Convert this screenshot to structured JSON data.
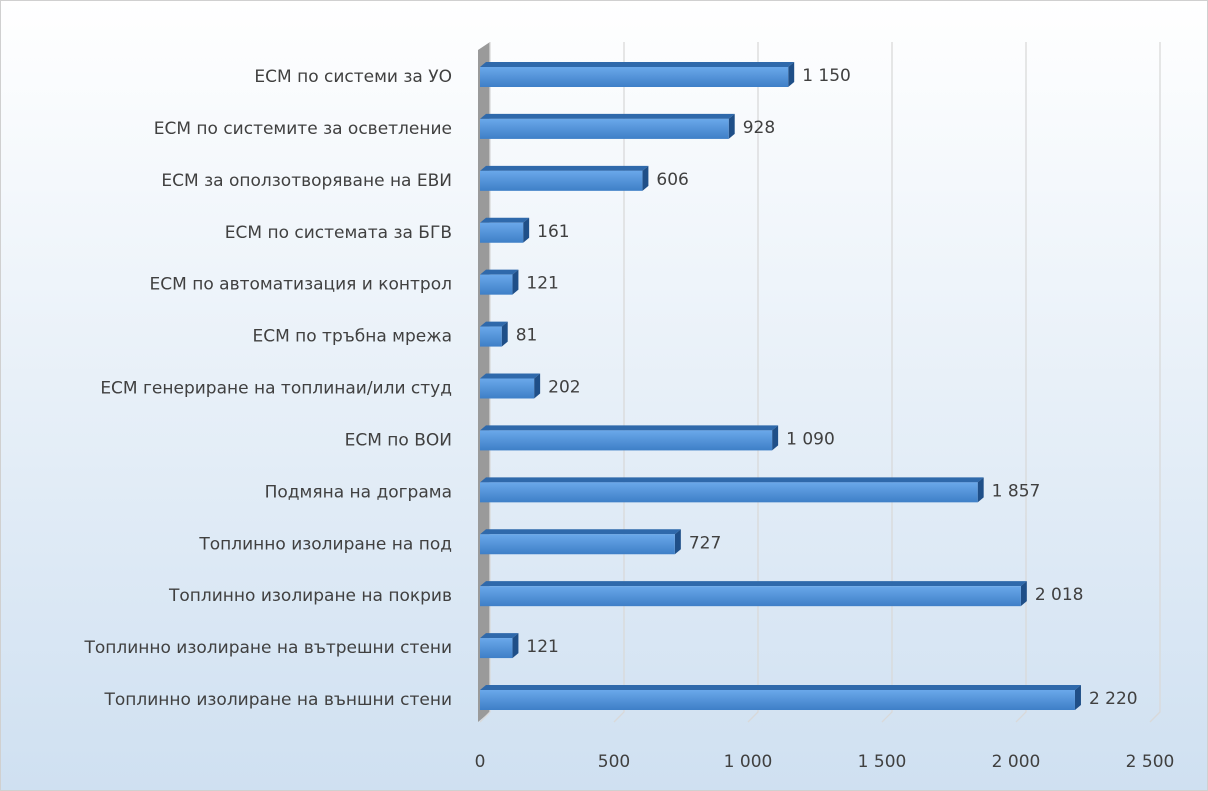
{
  "chart_data": {
    "type": "bar",
    "orientation": "horizontal",
    "categories": [
      "ЕСМ по системи за УО",
      "ЕСМ по системите за осветление",
      "ЕСМ за оползотворяване на ЕВИ",
      "ЕСМ по системата за БГВ",
      "ЕСМ по автоматизация и контрол",
      "ЕСМ по тръбна мрежа",
      "ЕСМ генериране на топлинаи/или студ",
      "ЕСМ по ВОИ",
      "Подмяна на дограма",
      "Топлинно изолиране на под",
      "Топлинно изолиране на покрив",
      "Топлинно изолиране на вътрешни стени",
      "Топлинно изолиране на външни стени"
    ],
    "values": [
      1150,
      928,
      606,
      161,
      121,
      81,
      202,
      1090,
      1857,
      727,
      2018,
      121,
      2220
    ],
    "value_labels": [
      "1 150",
      "928",
      "606",
      "161",
      "121",
      "81",
      "202",
      "1 090",
      "1 857",
      "727",
      "2 018",
      "121",
      "2 220"
    ],
    "color": "#4a8fd8",
    "xlim": [
      0,
      2500
    ],
    "xticks": [
      0,
      500,
      {
        "value": 1000,
        "label": "1 000"
      },
      {
        "value": 1500,
        "label": "1 500"
      },
      {
        "value": 2000,
        "label": "2 000"
      },
      {
        "value": 2500,
        "label": "2 500"
      }
    ],
    "grid": true
  }
}
